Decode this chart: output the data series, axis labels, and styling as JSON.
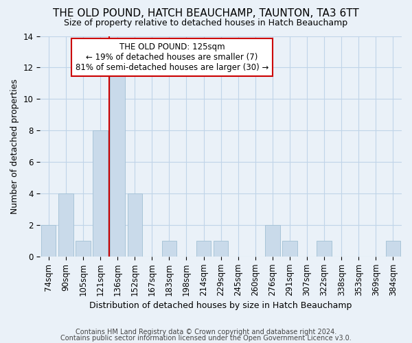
{
  "title": "THE OLD POUND, HATCH BEAUCHAMP, TAUNTON, TA3 6TT",
  "subtitle": "Size of property relative to detached houses in Hatch Beauchamp",
  "xlabel": "Distribution of detached houses by size in Hatch Beauchamp",
  "ylabel": "Number of detached properties",
  "footnote1": "Contains HM Land Registry data © Crown copyright and database right 2024.",
  "footnote2": "Contains public sector information licensed under the Open Government Licence v3.0.",
  "categories": [
    "74sqm",
    "90sqm",
    "105sqm",
    "121sqm",
    "136sqm",
    "152sqm",
    "167sqm",
    "183sqm",
    "198sqm",
    "214sqm",
    "229sqm",
    "245sqm",
    "260sqm",
    "276sqm",
    "291sqm",
    "307sqm",
    "322sqm",
    "338sqm",
    "353sqm",
    "369sqm",
    "384sqm"
  ],
  "values": [
    2,
    4,
    1,
    8,
    12,
    4,
    0,
    1,
    0,
    1,
    1,
    0,
    0,
    2,
    1,
    0,
    1,
    0,
    0,
    0,
    1
  ],
  "bar_color": "#c9daea",
  "bar_edge_color": "#a8c4d8",
  "grid_color": "#c0d4e8",
  "background_color": "#eaf1f8",
  "annotation_text_line1": "THE OLD POUND: 125sqm",
  "annotation_text_line2": "← 19% of detached houses are smaller (7)",
  "annotation_text_line3": "81% of semi-detached houses are larger (30) →",
  "annotation_box_color": "#ffffff",
  "annotation_border_color": "#cc0000",
  "property_line_color": "#cc0000",
  "property_line_x": 3.5,
  "ylim": [
    0,
    14
  ],
  "yticks": [
    0,
    2,
    4,
    6,
    8,
    10,
    12,
    14
  ],
  "title_fontsize": 11,
  "subtitle_fontsize": 9,
  "xlabel_fontsize": 9,
  "ylabel_fontsize": 9,
  "tick_fontsize": 8.5,
  "annot_fontsize": 8.5,
  "footnote_fontsize": 7
}
